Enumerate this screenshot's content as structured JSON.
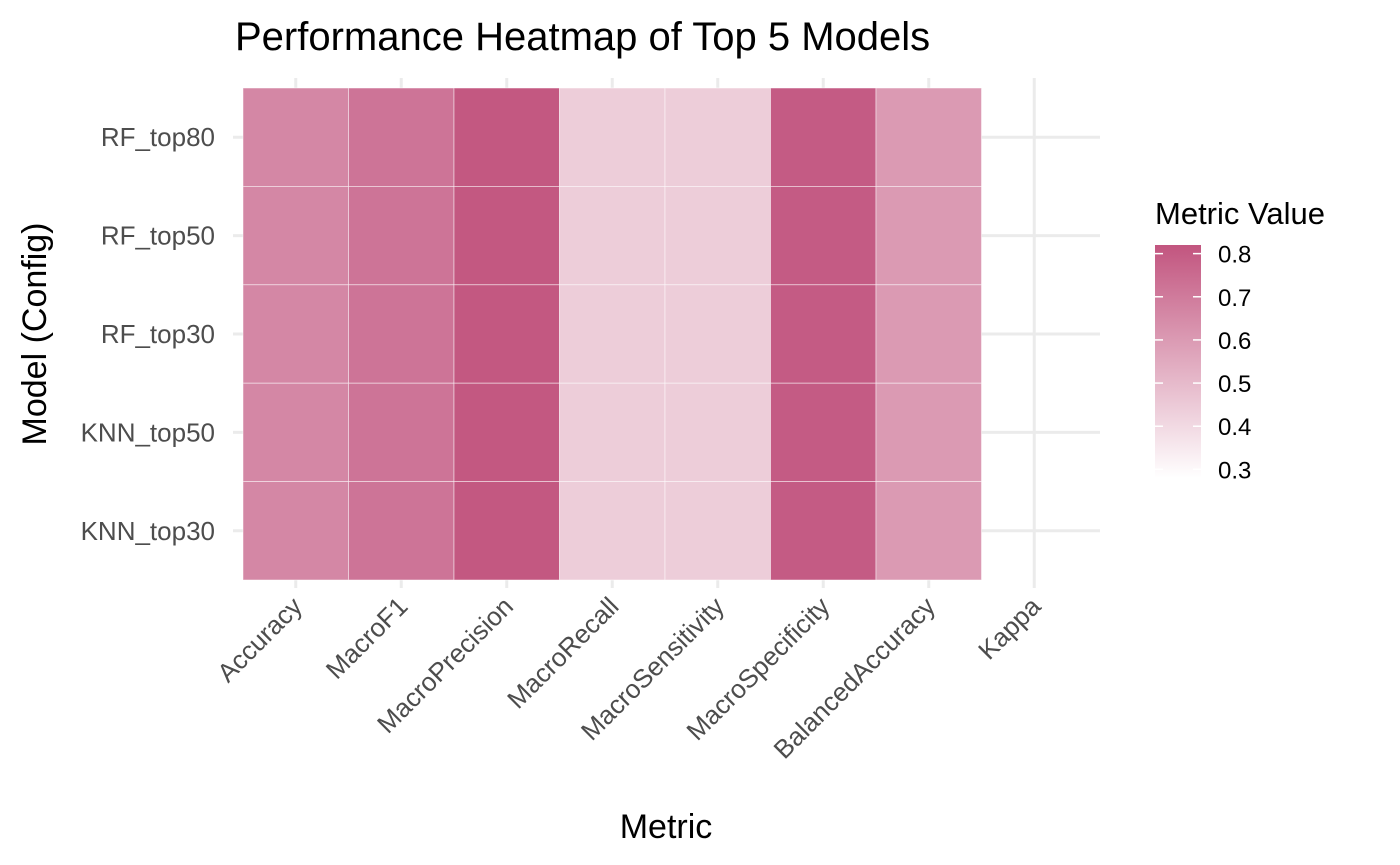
{
  "chart_data": {
    "type": "heatmap",
    "title": "Performance Heatmap of Top 5 Models",
    "xlabel": "Metric",
    "ylabel": "Model (Config)",
    "x_categories": [
      "Accuracy",
      "MacroF1",
      "MacroPrecision",
      "MacroRecall",
      "MacroSensitivity",
      "MacroSpecificity",
      "BalancedAccuracy",
      "Kappa"
    ],
    "y_categories": [
      "RF_top80",
      "RF_top50",
      "RF_top30",
      "KNN_top50",
      "KNN_top30"
    ],
    "values": [
      [
        0.66,
        0.72,
        0.81,
        0.44,
        0.44,
        0.8,
        0.6,
        null
      ],
      [
        0.66,
        0.72,
        0.81,
        0.44,
        0.44,
        0.8,
        0.6,
        null
      ],
      [
        0.66,
        0.72,
        0.81,
        0.44,
        0.44,
        0.8,
        0.6,
        null
      ],
      [
        0.66,
        0.72,
        0.81,
        0.44,
        0.44,
        0.8,
        0.6,
        null
      ],
      [
        0.66,
        0.72,
        0.81,
        0.44,
        0.44,
        0.8,
        0.6,
        null
      ]
    ],
    "legend": {
      "title": "Metric Value",
      "ticks": [
        "0.8",
        "0.7",
        "0.6",
        "0.5",
        "0.4",
        "0.3"
      ],
      "range": [
        0.28,
        0.82
      ],
      "position": "right"
    },
    "color_low": "#ffffff",
    "color_high": "#c2557f",
    "grid": true
  }
}
